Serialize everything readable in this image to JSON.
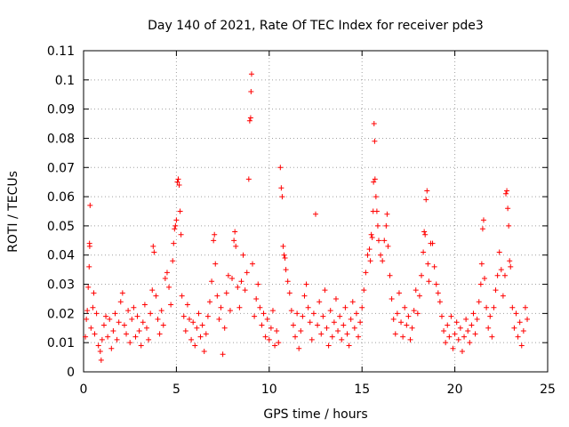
{
  "chart_data": {
    "type": "scatter",
    "title": "Day 140 of 2021, Rate Of TEC Index for receiver pde3",
    "xlabel": "GPS time / hours",
    "ylabel": "ROTI / TECUs",
    "xlim": [
      0,
      25
    ],
    "ylim": [
      0,
      0.11
    ],
    "x_ticks": [
      "0",
      "5",
      "10",
      "15",
      "20",
      "25"
    ],
    "y_ticks": [
      "0",
      "0.01",
      "0.02",
      "0.03",
      "0.04",
      "0.05",
      "0.06",
      "0.07",
      "0.08",
      "0.09",
      "0.1",
      "0.11"
    ],
    "x_tick_values": [
      0,
      5,
      10,
      15,
      20,
      25
    ],
    "y_tick_values": [
      0,
      0.01,
      0.02,
      0.03,
      0.04,
      0.05,
      0.06,
      0.07,
      0.08,
      0.09,
      0.1,
      0.11
    ],
    "grid": true,
    "marker": "+",
    "color": "#ff0000",
    "series": [
      {
        "points": [
          [
            0.1,
            0.012
          ],
          [
            0.15,
            0.018
          ],
          [
            0.2,
            0.021
          ],
          [
            0.25,
            0.029
          ],
          [
            0.3,
            0.036
          ],
          [
            0.32,
            0.044
          ],
          [
            0.33,
            0.043
          ],
          [
            0.35,
            0.057
          ],
          [
            0.4,
            0.015
          ],
          [
            0.5,
            0.022
          ],
          [
            0.55,
            0.027
          ],
          [
            0.6,
            0.013
          ],
          [
            0.7,
            0.02
          ],
          [
            0.8,
            0.009
          ],
          [
            0.9,
            0.007
          ],
          [
            0.95,
            0.004
          ],
          [
            1.0,
            0.011
          ],
          [
            1.1,
            0.016
          ],
          [
            1.2,
            0.019
          ],
          [
            1.3,
            0.012
          ],
          [
            1.4,
            0.018
          ],
          [
            1.5,
            0.008
          ],
          [
            1.6,
            0.014
          ],
          [
            1.7,
            0.02
          ],
          [
            1.8,
            0.011
          ],
          [
            1.9,
            0.017
          ],
          [
            2.0,
            0.024
          ],
          [
            2.1,
            0.027
          ],
          [
            2.2,
            0.016
          ],
          [
            2.3,
            0.013
          ],
          [
            2.4,
            0.021
          ],
          [
            2.5,
            0.01
          ],
          [
            2.6,
            0.018
          ],
          [
            2.7,
            0.022
          ],
          [
            2.8,
            0.012
          ],
          [
            2.9,
            0.019
          ],
          [
            3.0,
            0.014
          ],
          [
            3.1,
            0.009
          ],
          [
            3.2,
            0.017
          ],
          [
            3.3,
            0.023
          ],
          [
            3.4,
            0.015
          ],
          [
            3.5,
            0.011
          ],
          [
            3.6,
            0.02
          ],
          [
            3.7,
            0.028
          ],
          [
            3.75,
            0.043
          ],
          [
            3.8,
            0.041
          ],
          [
            3.9,
            0.026
          ],
          [
            4.0,
            0.018
          ],
          [
            4.1,
            0.013
          ],
          [
            4.2,
            0.021
          ],
          [
            4.3,
            0.016
          ],
          [
            4.4,
            0.032
          ],
          [
            4.5,
            0.034
          ],
          [
            4.6,
            0.029
          ],
          [
            4.7,
            0.023
          ],
          [
            4.8,
            0.038
          ],
          [
            4.85,
            0.044
          ],
          [
            4.9,
            0.049
          ],
          [
            4.95,
            0.05
          ],
          [
            5.0,
            0.052
          ],
          [
            5.05,
            0.065
          ],
          [
            5.1,
            0.066
          ],
          [
            5.15,
            0.064
          ],
          [
            5.2,
            0.055
          ],
          [
            5.25,
            0.047
          ],
          [
            5.3,
            0.026
          ],
          [
            5.4,
            0.019
          ],
          [
            5.5,
            0.014
          ],
          [
            5.6,
            0.023
          ],
          [
            5.7,
            0.018
          ],
          [
            5.8,
            0.011
          ],
          [
            5.9,
            0.017
          ],
          [
            6.0,
            0.009
          ],
          [
            6.1,
            0.015
          ],
          [
            6.2,
            0.02
          ],
          [
            6.3,
            0.012
          ],
          [
            6.4,
            0.016
          ],
          [
            6.5,
            0.007
          ],
          [
            6.6,
            0.013
          ],
          [
            6.7,
            0.019
          ],
          [
            6.8,
            0.024
          ],
          [
            6.9,
            0.031
          ],
          [
            7.0,
            0.045
          ],
          [
            7.05,
            0.047
          ],
          [
            7.1,
            0.037
          ],
          [
            7.2,
            0.026
          ],
          [
            7.3,
            0.018
          ],
          [
            7.4,
            0.022
          ],
          [
            7.5,
            0.006
          ],
          [
            7.6,
            0.015
          ],
          [
            7.7,
            0.027
          ],
          [
            7.8,
            0.033
          ],
          [
            7.9,
            0.021
          ],
          [
            8.0,
            0.032
          ],
          [
            8.1,
            0.045
          ],
          [
            8.15,
            0.048
          ],
          [
            8.2,
            0.043
          ],
          [
            8.3,
            0.029
          ],
          [
            8.4,
            0.022
          ],
          [
            8.5,
            0.031
          ],
          [
            8.6,
            0.04
          ],
          [
            8.7,
            0.028
          ],
          [
            8.8,
            0.034
          ],
          [
            8.9,
            0.066
          ],
          [
            8.95,
            0.086
          ],
          [
            9.0,
            0.087
          ],
          [
            9.02,
            0.096
          ],
          [
            9.05,
            0.102
          ],
          [
            9.1,
            0.037
          ],
          [
            9.2,
            0.019
          ],
          [
            9.3,
            0.025
          ],
          [
            9.4,
            0.03
          ],
          [
            9.5,
            0.022
          ],
          [
            9.6,
            0.016
          ],
          [
            9.7,
            0.02
          ],
          [
            9.8,
            0.012
          ],
          [
            9.9,
            0.018
          ],
          [
            10.0,
            0.011
          ],
          [
            10.1,
            0.015
          ],
          [
            10.2,
            0.021
          ],
          [
            10.3,
            0.009
          ],
          [
            10.4,
            0.014
          ],
          [
            10.5,
            0.01
          ],
          [
            10.6,
            0.07
          ],
          [
            10.65,
            0.063
          ],
          [
            10.7,
            0.06
          ],
          [
            10.75,
            0.043
          ],
          [
            10.8,
            0.04
          ],
          [
            10.85,
            0.039
          ],
          [
            10.9,
            0.035
          ],
          [
            11.0,
            0.031
          ],
          [
            11.1,
            0.027
          ],
          [
            11.2,
            0.021
          ],
          [
            11.3,
            0.016
          ],
          [
            11.4,
            0.012
          ],
          [
            11.5,
            0.02
          ],
          [
            11.6,
            0.008
          ],
          [
            11.7,
            0.014
          ],
          [
            11.8,
            0.019
          ],
          [
            11.9,
            0.026
          ],
          [
            12.0,
            0.03
          ],
          [
            12.1,
            0.022
          ],
          [
            12.2,
            0.017
          ],
          [
            12.3,
            0.011
          ],
          [
            12.4,
            0.02
          ],
          [
            12.5,
            0.054
          ],
          [
            12.6,
            0.016
          ],
          [
            12.7,
            0.024
          ],
          [
            12.8,
            0.013
          ],
          [
            12.9,
            0.019
          ],
          [
            13.0,
            0.028
          ],
          [
            13.1,
            0.015
          ],
          [
            13.2,
            0.009
          ],
          [
            13.3,
            0.021
          ],
          [
            13.4,
            0.012
          ],
          [
            13.5,
            0.017
          ],
          [
            13.6,
            0.025
          ],
          [
            13.7,
            0.014
          ],
          [
            13.8,
            0.019
          ],
          [
            13.9,
            0.011
          ],
          [
            14.0,
            0.016
          ],
          [
            14.1,
            0.022
          ],
          [
            14.2,
            0.013
          ],
          [
            14.3,
            0.009
          ],
          [
            14.4,
            0.018
          ],
          [
            14.5,
            0.024
          ],
          [
            14.6,
            0.015
          ],
          [
            14.7,
            0.02
          ],
          [
            14.8,
            0.012
          ],
          [
            14.9,
            0.017
          ],
          [
            15.0,
            0.022
          ],
          [
            15.1,
            0.028
          ],
          [
            15.2,
            0.034
          ],
          [
            15.3,
            0.04
          ],
          [
            15.4,
            0.042
          ],
          [
            15.45,
            0.038
          ],
          [
            15.5,
            0.047
          ],
          [
            15.55,
            0.046
          ],
          [
            15.6,
            0.055
          ],
          [
            15.62,
            0.065
          ],
          [
            15.65,
            0.085
          ],
          [
            15.68,
            0.079
          ],
          [
            15.7,
            0.066
          ],
          [
            15.75,
            0.06
          ],
          [
            15.8,
            0.055
          ],
          [
            15.85,
            0.05
          ],
          [
            15.9,
            0.045
          ],
          [
            16.0,
            0.04
          ],
          [
            16.1,
            0.038
          ],
          [
            16.2,
            0.045
          ],
          [
            16.3,
            0.05
          ],
          [
            16.35,
            0.054
          ],
          [
            16.4,
            0.043
          ],
          [
            16.5,
            0.033
          ],
          [
            16.6,
            0.025
          ],
          [
            16.7,
            0.018
          ],
          [
            16.8,
            0.013
          ],
          [
            16.9,
            0.02
          ],
          [
            17.0,
            0.027
          ],
          [
            17.1,
            0.017
          ],
          [
            17.2,
            0.012
          ],
          [
            17.3,
            0.022
          ],
          [
            17.4,
            0.016
          ],
          [
            17.5,
            0.019
          ],
          [
            17.6,
            0.011
          ],
          [
            17.7,
            0.015
          ],
          [
            17.8,
            0.021
          ],
          [
            17.9,
            0.028
          ],
          [
            18.0,
            0.02
          ],
          [
            18.1,
            0.026
          ],
          [
            18.2,
            0.033
          ],
          [
            18.3,
            0.041
          ],
          [
            18.35,
            0.048
          ],
          [
            18.4,
            0.047
          ],
          [
            18.45,
            0.059
          ],
          [
            18.5,
            0.062
          ],
          [
            18.55,
            0.037
          ],
          [
            18.6,
            0.031
          ],
          [
            18.7,
            0.044
          ],
          [
            18.8,
            0.044
          ],
          [
            18.9,
            0.036
          ],
          [
            19.0,
            0.03
          ],
          [
            19.1,
            0.027
          ],
          [
            19.2,
            0.024
          ],
          [
            19.3,
            0.019
          ],
          [
            19.4,
            0.014
          ],
          [
            19.5,
            0.01
          ],
          [
            19.6,
            0.016
          ],
          [
            19.7,
            0.012
          ],
          [
            19.8,
            0.019
          ],
          [
            19.9,
            0.008
          ],
          [
            20.0,
            0.013
          ],
          [
            20.1,
            0.017
          ],
          [
            20.2,
            0.011
          ],
          [
            20.3,
            0.015
          ],
          [
            20.4,
            0.007
          ],
          [
            20.5,
            0.012
          ],
          [
            20.6,
            0.018
          ],
          [
            20.7,
            0.014
          ],
          [
            20.8,
            0.01
          ],
          [
            20.9,
            0.016
          ],
          [
            21.0,
            0.02
          ],
          [
            21.1,
            0.013
          ],
          [
            21.2,
            0.018
          ],
          [
            21.3,
            0.024
          ],
          [
            21.4,
            0.03
          ],
          [
            21.45,
            0.037
          ],
          [
            21.5,
            0.049
          ],
          [
            21.55,
            0.052
          ],
          [
            21.6,
            0.032
          ],
          [
            21.7,
            0.022
          ],
          [
            21.8,
            0.015
          ],
          [
            21.9,
            0.019
          ],
          [
            22.0,
            0.012
          ],
          [
            22.1,
            0.022
          ],
          [
            22.2,
            0.028
          ],
          [
            22.3,
            0.033
          ],
          [
            22.4,
            0.041
          ],
          [
            22.5,
            0.035
          ],
          [
            22.6,
            0.026
          ],
          [
            22.7,
            0.033
          ],
          [
            22.75,
            0.061
          ],
          [
            22.8,
            0.062
          ],
          [
            22.85,
            0.056
          ],
          [
            22.9,
            0.05
          ],
          [
            22.95,
            0.038
          ],
          [
            23.0,
            0.036
          ],
          [
            23.1,
            0.022
          ],
          [
            23.2,
            0.015
          ],
          [
            23.3,
            0.02
          ],
          [
            23.4,
            0.012
          ],
          [
            23.5,
            0.017
          ],
          [
            23.6,
            0.009
          ],
          [
            23.7,
            0.014
          ],
          [
            23.8,
            0.022
          ],
          [
            23.9,
            0.018
          ]
        ]
      }
    ]
  }
}
